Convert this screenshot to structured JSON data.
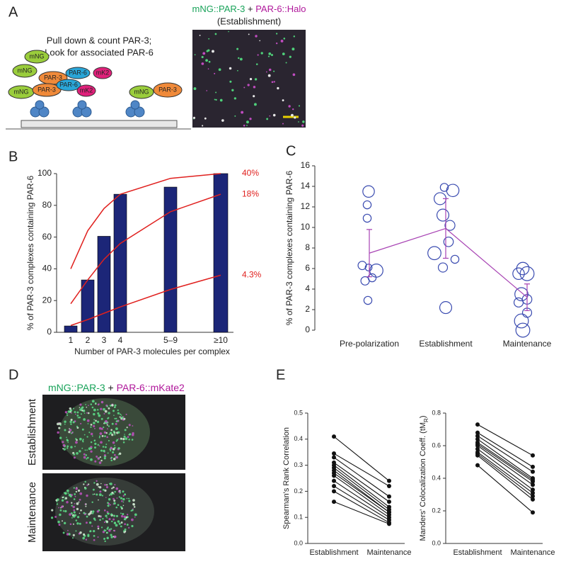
{
  "panels": [
    "A",
    "B",
    "C",
    "D",
    "E"
  ],
  "panel_a": {
    "cartoon_title_1": "Pull down & count PAR-3;",
    "cartoon_title_2": "Look for associated PAR-6",
    "cartoon": [
      {
        "text": "mNG"
      },
      {
        "text": "mNG"
      },
      {
        "text": "PAR-3"
      },
      {
        "text": "PAR-6"
      },
      {
        "text": "mK2"
      },
      {
        "text": "mNG"
      },
      {
        "text": "PAR-3"
      },
      {
        "text": "PAR-6"
      },
      {
        "text": "mK2"
      },
      {
        "text": "mNG"
      },
      {
        "text": "PAR-3"
      }
    ],
    "image_title_green": "mNG::PAR-3",
    "image_title_plus": "+",
    "image_title_magenta": "PAR-6::Halo",
    "image_subtitle": "(Establishment)"
  },
  "panel_d": {
    "title_green": "mNG::PAR-3",
    "title_plus": "+",
    "title_magenta": "PAR-6::mKate2",
    "row_labels": [
      "Establishment",
      "Maintenance"
    ]
  },
  "chart_data": [
    {
      "type": "bar",
      "xlabel": "Number of PAR-3 molecules per complex",
      "ylabel": "% of PAR-3 complexes containing PAR-6",
      "categories": [
        "1",
        "2",
        "3",
        "4",
        "5–9",
        "≥10"
      ],
      "values": [
        4,
        33,
        60.5,
        87,
        91.5,
        100
      ],
      "color": "#1c2678",
      "ylim": [
        0,
        100
      ],
      "yticks": [
        0,
        20,
        40,
        60,
        80,
        100
      ],
      "curves": [
        {
          "name": "40%",
          "color": "#e0201e",
          "values": [
            40,
            64,
            78,
            87,
            97,
            100
          ]
        },
        {
          "name": "18%",
          "color": "#e0201e",
          "values": [
            18,
            33,
            46,
            56,
            76,
            87
          ]
        },
        {
          "name": "4.3%",
          "color": "#e0201e",
          "values": [
            4.3,
            8,
            12,
            16,
            27,
            36
          ]
        }
      ]
    },
    {
      "type": "scatter",
      "ylabel": "% of PAR-3 complexes containing PAR-6",
      "categories": [
        "Pre-polarization",
        "Establishment",
        "Maintenance"
      ],
      "groups": [
        {
          "values": [
            13.5,
            12.2,
            10.9,
            6.3,
            6.1,
            5.8,
            5.1,
            4.8,
            2.9
          ],
          "sizes": [
            2.2,
            1.3,
            1.3,
            1.4,
            1,
            2.6,
            1.3,
            1.4,
            1.3
          ]
        },
        {
          "values": [
            13.9,
            13.6,
            12.8,
            11.2,
            10.2,
            8.6,
            7.5,
            6.9,
            6.1,
            2.2
          ],
          "sizes": [
            1.3,
            2.4,
            2.3,
            2.3,
            1.8,
            1.7,
            2.6,
            1.3,
            1.6,
            2.3
          ]
        },
        {
          "values": [
            6.0,
            5.5,
            5.5,
            3.5,
            3.0,
            2.7,
            1.7,
            0.9,
            0
          ],
          "sizes": [
            2.4,
            2.2,
            2.8,
            2.6,
            1.7,
            1.6,
            1.6,
            2.8,
            2.8
          ]
        }
      ],
      "color": "#3a4bb0",
      "means": [
        7.5,
        9.9,
        3.2
      ],
      "errors": [
        2.3,
        2.9,
        1.3
      ],
      "mean_color": "#a844b4",
      "ylim": [
        0,
        16
      ],
      "yticks": [
        0,
        2,
        4,
        6,
        8,
        10,
        12,
        14,
        16
      ]
    },
    {
      "type": "line",
      "ylabel": "Spearman's Rank Correlation",
      "categories": [
        "Establishment",
        "Maintenance"
      ],
      "color": "#111111",
      "pairs": [
        [
          0.41,
          0.24
        ],
        [
          0.345,
          0.22
        ],
        [
          0.33,
          0.18
        ],
        [
          0.31,
          0.16
        ],
        [
          0.3,
          0.14
        ],
        [
          0.29,
          0.13
        ],
        [
          0.28,
          0.12
        ],
        [
          0.27,
          0.12
        ],
        [
          0.26,
          0.11
        ],
        [
          0.24,
          0.1
        ],
        [
          0.22,
          0.09
        ],
        [
          0.2,
          0.08
        ],
        [
          0.16,
          0.075
        ]
      ],
      "ylim": [
        0,
        0.5
      ],
      "yticks": [
        {
          "value": 0,
          "label": "0.0"
        },
        0.1,
        0.2,
        0.3,
        0.4,
        0.5
      ]
    },
    {
      "type": "line",
      "ylabel": "Manders' Colocalization Coeff. (tM",
      "ylabel_sub": "R",
      "ylabel_end": ")",
      "categories": [
        "Establishment",
        "Maintenance"
      ],
      "color": "#111111",
      "pairs": [
        [
          0.73,
          0.54
        ],
        [
          0.68,
          0.47
        ],
        [
          0.66,
          0.44
        ],
        [
          0.64,
          0.4
        ],
        [
          0.62,
          0.39
        ],
        [
          0.61,
          0.38
        ],
        [
          0.6,
          0.36
        ],
        [
          0.58,
          0.33
        ],
        [
          0.56,
          0.31
        ],
        [
          0.55,
          0.29
        ],
        [
          0.54,
          0.27
        ],
        [
          0.48,
          0.19
        ]
      ],
      "ylim": [
        0,
        0.8
      ],
      "yticks": [
        {
          "value": 0,
          "label": "0.0"
        },
        0.2,
        0.4,
        0.6,
        0.8
      ]
    }
  ]
}
